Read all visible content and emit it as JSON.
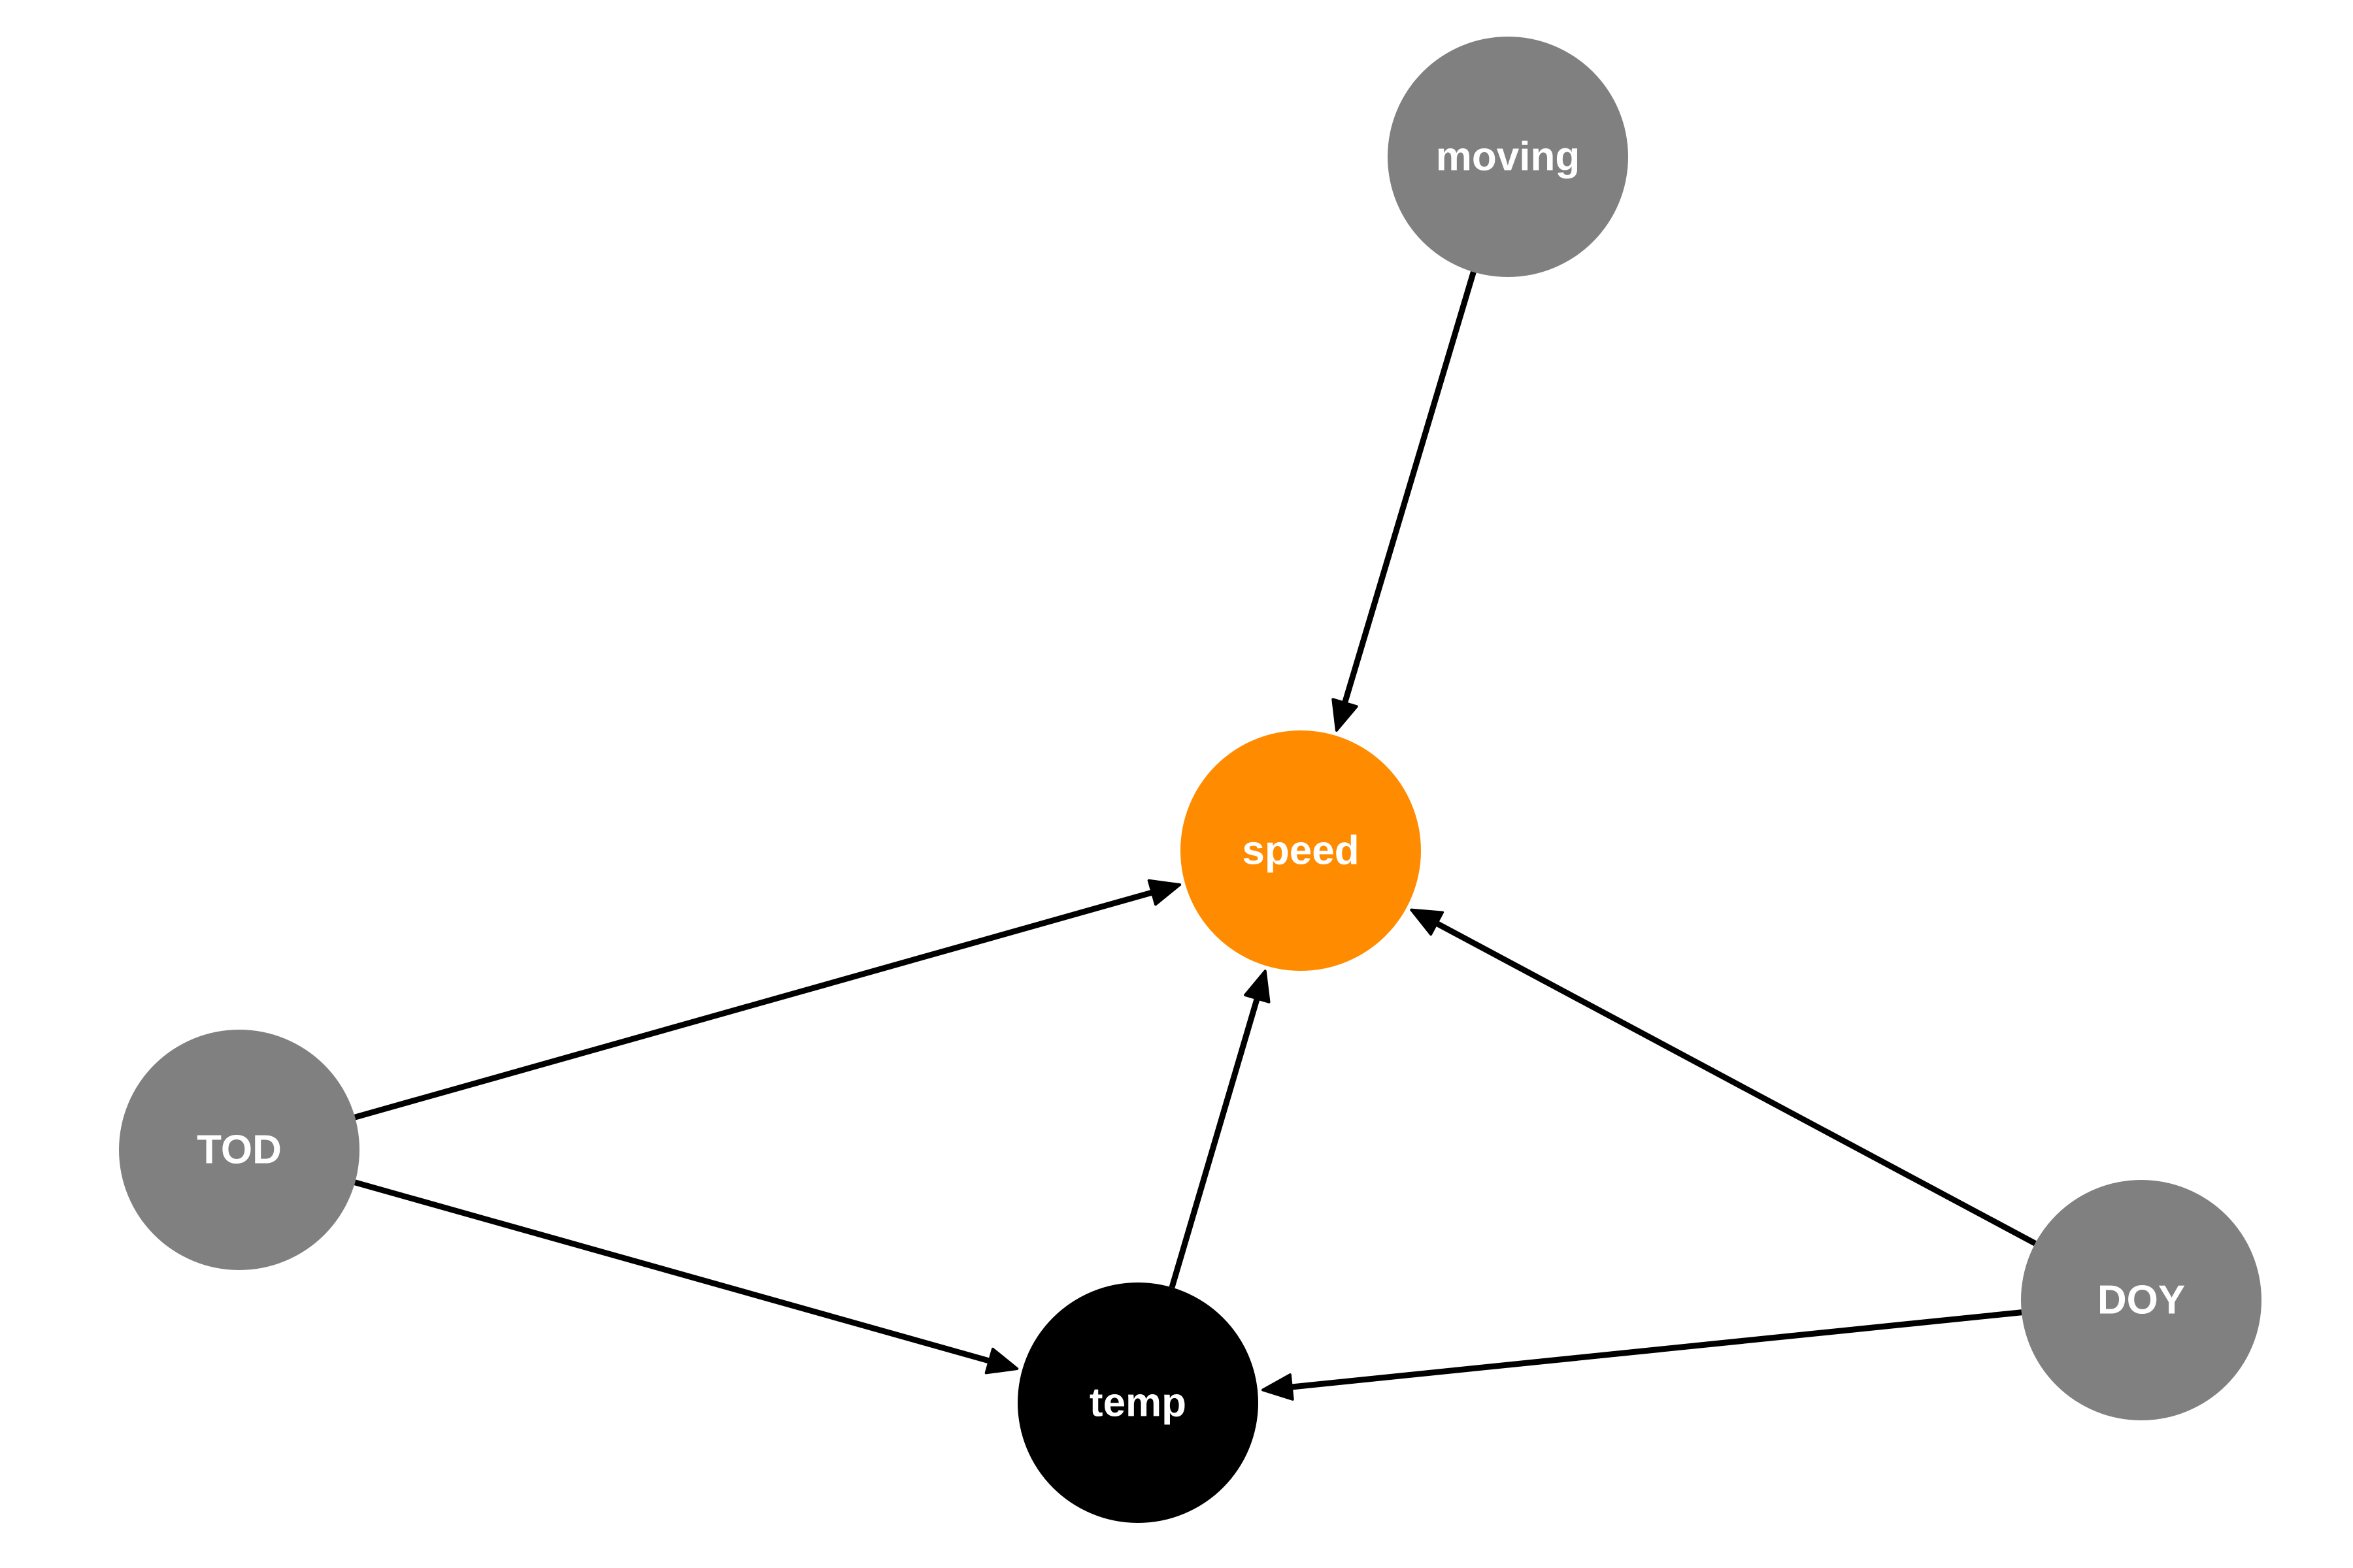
{
  "diagram": {
    "type": "directed-graph",
    "colors": {
      "exposure_gray": "#808080",
      "outcome_orange": "#FF8C00",
      "mediator_black": "#000000",
      "label_white": "#FFFFFF",
      "edge_black": "#000000"
    },
    "nodes": [
      {
        "id": "moving",
        "label": "moving",
        "color": "#808080"
      },
      {
        "id": "speed",
        "label": "speed",
        "color": "#FF8C00"
      },
      {
        "id": "TOD",
        "label": "TOD",
        "color": "#808080"
      },
      {
        "id": "temp",
        "label": "temp",
        "color": "#000000"
      },
      {
        "id": "DOY",
        "label": "DOY",
        "color": "#808080"
      }
    ],
    "edges": [
      {
        "from": "moving",
        "to": "speed"
      },
      {
        "from": "TOD",
        "to": "speed"
      },
      {
        "from": "TOD",
        "to": "temp"
      },
      {
        "from": "temp",
        "to": "speed"
      },
      {
        "from": "DOY",
        "to": "speed"
      },
      {
        "from": "DOY",
        "to": "temp"
      }
    ]
  }
}
